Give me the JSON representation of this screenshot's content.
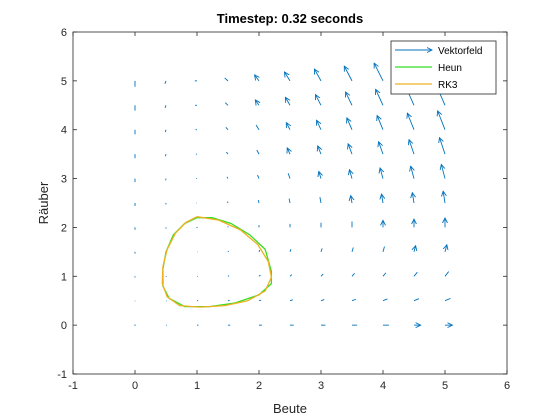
{
  "chart_data": {
    "type": "line",
    "title": "Timestep: 0.32 seconds",
    "xlabel": "Beute",
    "ylabel": "Räuber",
    "xlim": [
      -1,
      6
    ],
    "ylim": [
      -1,
      6
    ],
    "xticks": [
      "-1",
      "0",
      "1",
      "2",
      "3",
      "4",
      "5",
      "6"
    ],
    "yticks": [
      "-1",
      "0",
      "1",
      "2",
      "3",
      "4",
      "5",
      "6"
    ],
    "grid": false,
    "legend_position": "top-right",
    "vector_field": {
      "name": "Vektorfeld",
      "color": "#0072BD",
      "x_range": [
        0,
        5
      ],
      "y_range": [
        0,
        5
      ],
      "step": 0.5
    },
    "series": [
      {
        "name": "Heun",
        "color": "#33dd22",
        "points": [
          [
            1.0,
            2.2
          ],
          [
            1.25,
            2.2
          ],
          [
            1.55,
            2.08
          ],
          [
            1.85,
            1.85
          ],
          [
            2.1,
            1.55
          ],
          [
            2.2,
            1.1
          ],
          [
            2.2,
            0.85
          ],
          [
            2.0,
            0.62
          ],
          [
            1.6,
            0.45
          ],
          [
            1.2,
            0.38
          ],
          [
            0.8,
            0.38
          ],
          [
            0.55,
            0.55
          ],
          [
            0.45,
            0.8
          ],
          [
            0.45,
            1.15
          ],
          [
            0.5,
            1.5
          ],
          [
            0.62,
            1.85
          ],
          [
            0.8,
            2.08
          ],
          [
            1.0,
            2.2
          ]
        ]
      },
      {
        "name": "RK3",
        "color": "#EDB120",
        "points": [
          [
            1.0,
            2.22
          ],
          [
            1.35,
            2.15
          ],
          [
            1.7,
            1.95
          ],
          [
            1.98,
            1.65
          ],
          [
            2.15,
            1.3
          ],
          [
            2.2,
            0.98
          ],
          [
            2.1,
            0.7
          ],
          [
            1.82,
            0.5
          ],
          [
            1.45,
            0.4
          ],
          [
            1.05,
            0.37
          ],
          [
            0.72,
            0.4
          ],
          [
            0.52,
            0.58
          ],
          [
            0.44,
            0.85
          ],
          [
            0.45,
            1.2
          ],
          [
            0.52,
            1.55
          ],
          [
            0.65,
            1.88
          ],
          [
            0.82,
            2.1
          ],
          [
            1.0,
            2.22
          ]
        ]
      }
    ]
  }
}
